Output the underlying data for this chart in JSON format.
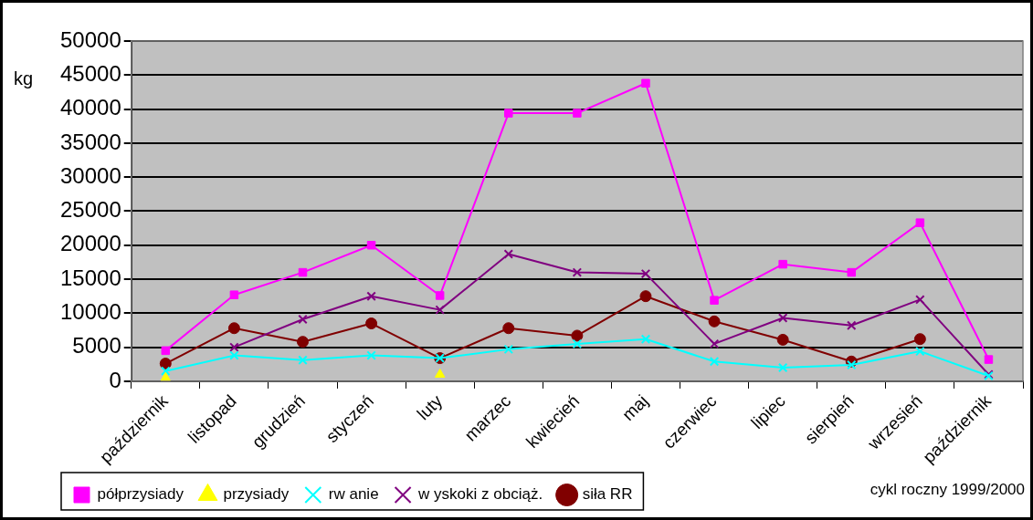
{
  "chart_data": {
    "type": "line",
    "ylabel": "kg",
    "categories": [
      "październik",
      "listopad",
      "grudzień",
      "styczeń",
      "luty",
      "marzec",
      "kwiecień",
      "maj",
      "czerwiec",
      "lipiec",
      "sierpień",
      "wrzesień",
      "październik"
    ],
    "series": [
      {
        "name": "półprzysiady",
        "color": "#ff00ff",
        "marker": "square",
        "values": [
          4500,
          12700,
          16000,
          20000,
          12600,
          39400,
          39400,
          43800,
          11900,
          17200,
          16000,
          23300,
          3200
        ]
      },
      {
        "name": "przysiady",
        "type": "scatter",
        "color": "#ffff00",
        "marker": "triangle",
        "values": [
          500,
          null,
          null,
          null,
          1000,
          null,
          null,
          null,
          null,
          null,
          null,
          null,
          null
        ]
      },
      {
        "name": "rw anie",
        "color": "#00ffff",
        "marker": "cross",
        "values": [
          1500,
          3800,
          3100,
          3800,
          3400,
          4700,
          5500,
          6200,
          2900,
          2000,
          2400,
          4400,
          800
        ]
      },
      {
        "name": "w yskoki z obciąż.",
        "color": "#800080",
        "marker": "cross",
        "values": [
          null,
          5000,
          9100,
          12500,
          10500,
          18700,
          16000,
          15800,
          5500,
          9300,
          8200,
          12000,
          1000
        ]
      },
      {
        "name": "siła RR",
        "color": "#800000",
        "marker": "circle",
        "values": [
          2600,
          7800,
          5800,
          8500,
          3400,
          7800,
          6700,
          12500,
          8800,
          6100,
          2900,
          6200,
          null
        ]
      }
    ],
    "ylim": [
      0,
      50000
    ],
    "yticks": [
      0,
      5000,
      10000,
      15000,
      20000,
      25000,
      30000,
      35000,
      40000,
      45000,
      50000
    ],
    "grid": "y",
    "legend": "bottom",
    "line_style": "solid",
    "annotations": [
      "cykl roczny 1999/2000"
    ]
  }
}
